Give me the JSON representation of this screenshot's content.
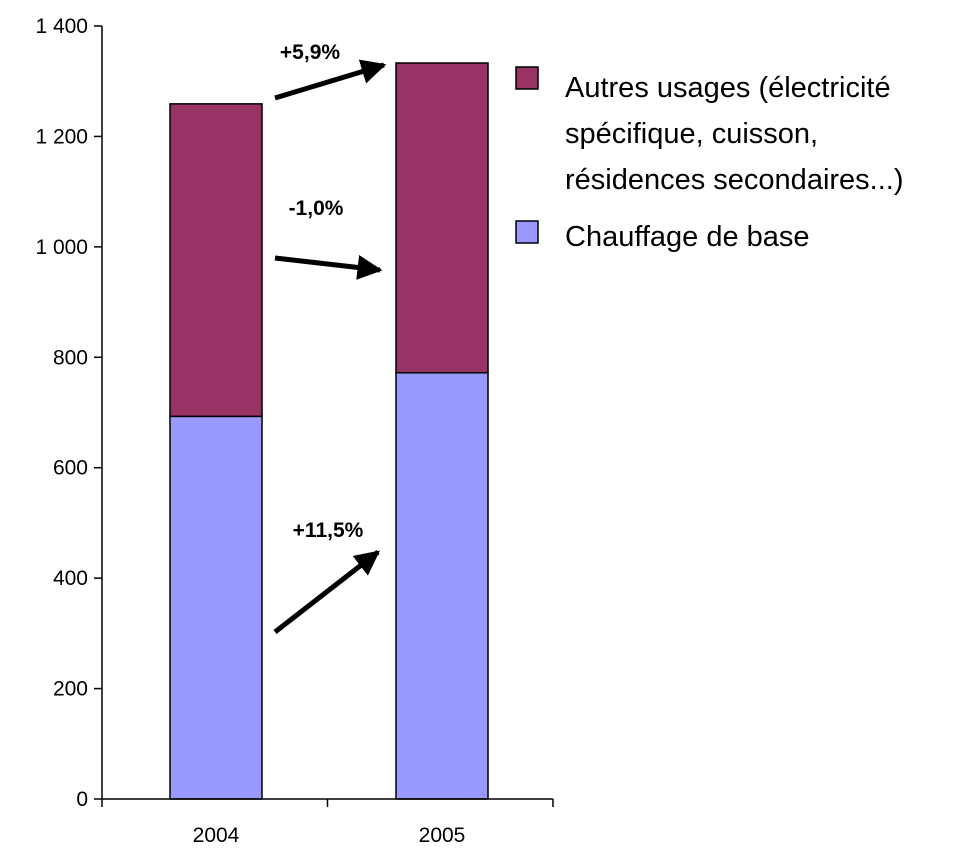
{
  "chart_data": {
    "type": "bar",
    "stacked": true,
    "categories": [
      "2004",
      "2005"
    ],
    "series": [
      {
        "name": "Chauffage de base",
        "values": [
          693,
          772
        ],
        "color": "#9999ff"
      },
      {
        "name": "Autres usages (électricité spécifique, cuisson, résidences secondaires...)",
        "values": [
          566,
          561
        ],
        "color": "#993366"
      }
    ],
    "legend_lines": {
      "autres": [
        "Autres usages (électricité",
        "spécifique, cuisson,",
        "résidences secondaires...)"
      ],
      "chauffage": [
        "Chauffage de base"
      ]
    },
    "yticks": [
      "0",
      "200",
      "400",
      "600",
      "800",
      "1 000",
      "1 200",
      "1 400"
    ],
    "ylim": [
      0,
      1400
    ],
    "grid": false,
    "legend_position": "top-right",
    "title": "",
    "xlabel": "",
    "ylabel": "",
    "annotations": [
      {
        "label": "+5,9%",
        "target": "total"
      },
      {
        "label": "-1,0%",
        "target": "Autres usages"
      },
      {
        "label": "+11,5%",
        "target": "Chauffage de base"
      }
    ]
  }
}
